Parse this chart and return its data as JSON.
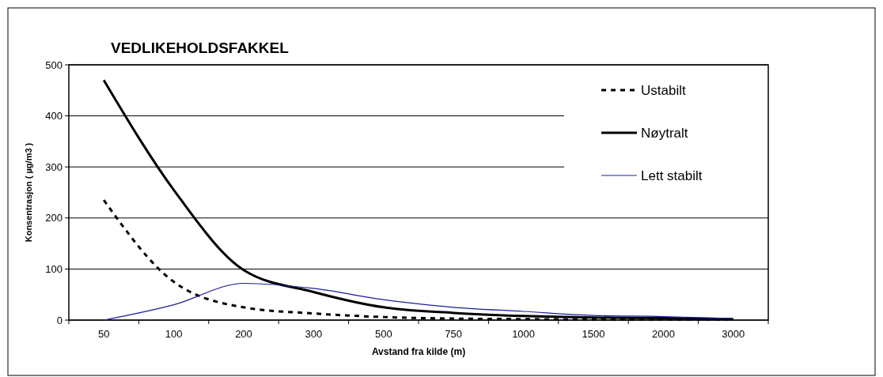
{
  "chart_data": {
    "type": "line",
    "title": "VEDLIKEHOLDSFAKKEL",
    "xlabel": "Avstand fra kilde (m)",
    "ylabel": "Konsentrasjon ( µg/m3 )",
    "categories": [
      "50",
      "100",
      "200",
      "300",
      "500",
      "750",
      "1000",
      "1500",
      "2000",
      "3000"
    ],
    "ylim": [
      0,
      500
    ],
    "yticks": [
      0,
      100,
      200,
      300,
      400,
      500
    ],
    "grid": "y",
    "legend": "top right",
    "marker": "none",
    "series": [
      {
        "name": "Ustabilt",
        "color": "#000000",
        "line_style": "dashed",
        "values": [
          235,
          75,
          25,
          13,
          6,
          3,
          2,
          1,
          1,
          1
        ]
      },
      {
        "name": "Nøytralt",
        "color": "#000000",
        "line_style": "solid",
        "values": [
          470,
          255,
          98,
          55,
          25,
          14,
          8,
          5,
          4,
          2
        ]
      },
      {
        "name": "Lett stabilt",
        "color": "#1c1c9c",
        "line_style": "solid",
        "values": [
          0,
          30,
          72,
          62,
          40,
          25,
          17,
          9,
          7,
          3
        ]
      }
    ]
  }
}
